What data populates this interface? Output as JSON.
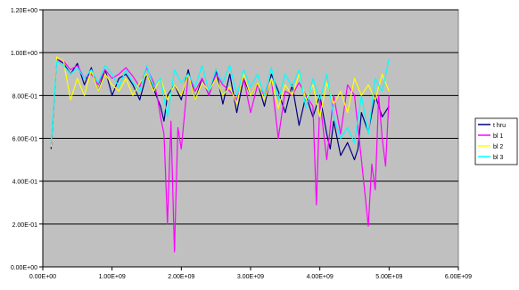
{
  "chart_data": {
    "type": "line",
    "title": "",
    "xlabel": "",
    "ylabel": "",
    "xlim": [
      0,
      6000000000
    ],
    "ylim": [
      0,
      1.2
    ],
    "xticks": [
      0,
      1000000000,
      2000000000,
      3000000000,
      4000000000,
      5000000000,
      6000000000
    ],
    "xtick_labels": [
      "0.00E+00",
      "1.00E+09",
      "2.00E+09",
      "3.00E+09",
      "4.00E+09",
      "5.00E+09",
      "6.00E+09"
    ],
    "yticks": [
      0,
      0.2,
      0.4,
      0.6,
      0.8,
      1.0,
      1.2
    ],
    "ytick_labels": [
      "0.00E+00",
      "2.00E-01",
      "4.00E-01",
      "6.00E-01",
      "8.00E-01",
      "1.00E+00",
      "1.20E+00"
    ],
    "grid": "horizontal",
    "legend_position": "right",
    "plot_background": "#c0c0c0",
    "series": [
      {
        "name": "t hru",
        "color": "#000080",
        "x": [
          120000000,
          200000000,
          300000000,
          400000000,
          500000000,
          600000000,
          700000000,
          800000000,
          900000000,
          1000000000,
          1100000000,
          1200000000,
          1300000000,
          1400000000,
          1500000000,
          1600000000,
          1700000000,
          1750000000,
          1800000000,
          1900000000,
          2000000000,
          2100000000,
          2200000000,
          2300000000,
          2400000000,
          2500000000,
          2600000000,
          2700000000,
          2800000000,
          2900000000,
          3000000000,
          3100000000,
          3200000000,
          3300000000,
          3400000000,
          3500000000,
          3600000000,
          3700000000,
          3800000000,
          3900000000,
          4000000000,
          4100000000,
          4150000000,
          4200000000,
          4300000000,
          4400000000,
          4500000000,
          4550000000,
          4600000000,
          4700000000,
          4800000000,
          4900000000,
          5000000000
        ],
        "y": [
          0.55,
          0.97,
          0.95,
          0.9,
          0.95,
          0.85,
          0.93,
          0.82,
          0.92,
          0.8,
          0.88,
          0.9,
          0.85,
          0.78,
          0.9,
          0.83,
          0.75,
          0.68,
          0.8,
          0.85,
          0.78,
          0.92,
          0.78,
          0.88,
          0.8,
          0.92,
          0.76,
          0.9,
          0.72,
          0.88,
          0.8,
          0.86,
          0.75,
          0.9,
          0.82,
          0.72,
          0.85,
          0.66,
          0.8,
          0.7,
          0.8,
          0.62,
          0.55,
          0.68,
          0.52,
          0.58,
          0.5,
          0.55,
          0.72,
          0.63,
          0.8,
          0.7,
          0.75
        ]
      },
      {
        "name": "bl 1",
        "color": "#ff00ff",
        "x": [
          120000000,
          200000000,
          300000000,
          400000000,
          500000000,
          600000000,
          700000000,
          800000000,
          900000000,
          1000000000,
          1100000000,
          1200000000,
          1300000000,
          1400000000,
          1500000000,
          1600000000,
          1650000000,
          1700000000,
          1750000000,
          1800000000,
          1850000000,
          1900000000,
          1950000000,
          2000000000,
          2100000000,
          2200000000,
          2300000000,
          2400000000,
          2500000000,
          2600000000,
          2700000000,
          2800000000,
          2900000000,
          3000000000,
          3100000000,
          3200000000,
          3300000000,
          3400000000,
          3500000000,
          3600000000,
          3700000000,
          3800000000,
          3900000000,
          3950000000,
          4000000000,
          4100000000,
          4200000000,
          4300000000,
          4400000000,
          4500000000,
          4600000000,
          4700000000,
          4750000000,
          4800000000,
          4850000000,
          4900000000,
          4950000000,
          5000000000
        ],
        "y": [
          0.56,
          0.97,
          0.96,
          0.92,
          0.94,
          0.88,
          0.9,
          0.85,
          0.92,
          0.88,
          0.9,
          0.93,
          0.89,
          0.84,
          0.93,
          0.86,
          0.8,
          0.7,
          0.62,
          0.2,
          0.68,
          0.07,
          0.65,
          0.55,
          0.9,
          0.82,
          0.88,
          0.8,
          0.9,
          0.85,
          0.82,
          0.78,
          0.88,
          0.72,
          0.85,
          0.8,
          0.88,
          0.6,
          0.82,
          0.8,
          0.86,
          0.8,
          0.75,
          0.29,
          0.78,
          0.5,
          0.8,
          0.62,
          0.85,
          0.8,
          0.5,
          0.19,
          0.48,
          0.36,
          0.8,
          0.6,
          0.47,
          0.8
        ]
      },
      {
        "name": "bl 2",
        "color": "#ffff00",
        "x": [
          120000000,
          200000000,
          300000000,
          400000000,
          500000000,
          600000000,
          700000000,
          800000000,
          900000000,
          1000000000,
          1100000000,
          1200000000,
          1300000000,
          1400000000,
          1500000000,
          1600000000,
          1700000000,
          1800000000,
          1900000000,
          2000000000,
          2100000000,
          2200000000,
          2300000000,
          2400000000,
          2500000000,
          2600000000,
          2700000000,
          2800000000,
          2900000000,
          3000000000,
          3100000000,
          3200000000,
          3300000000,
          3400000000,
          3500000000,
          3600000000,
          3700000000,
          3800000000,
          3900000000,
          4000000000,
          4100000000,
          4200000000,
          4300000000,
          4400000000,
          4500000000,
          4600000000,
          4700000000,
          4800000000,
          4900000000,
          5000000000
        ],
        "y": [
          0.56,
          0.98,
          0.96,
          0.78,
          0.88,
          0.8,
          0.92,
          0.82,
          0.9,
          0.85,
          0.82,
          0.88,
          0.8,
          0.86,
          0.9,
          0.82,
          0.88,
          0.78,
          0.85,
          0.8,
          0.9,
          0.78,
          0.86,
          0.82,
          0.88,
          0.8,
          0.84,
          0.76,
          0.9,
          0.8,
          0.86,
          0.78,
          0.88,
          0.74,
          0.85,
          0.8,
          0.9,
          0.78,
          0.85,
          0.7,
          0.86,
          0.76,
          0.82,
          0.72,
          0.88,
          0.8,
          0.85,
          0.78,
          0.9,
          0.82
        ]
      },
      {
        "name": "bl 3",
        "color": "#00ffff",
        "x": [
          120000000,
          200000000,
          300000000,
          400000000,
          500000000,
          600000000,
          700000000,
          800000000,
          900000000,
          1000000000,
          1100000000,
          1200000000,
          1300000000,
          1400000000,
          1500000000,
          1600000000,
          1700000000,
          1800000000,
          1900000000,
          2000000000,
          2100000000,
          2200000000,
          2300000000,
          2400000000,
          2500000000,
          2600000000,
          2700000000,
          2800000000,
          2900000000,
          3000000000,
          3100000000,
          3200000000,
          3300000000,
          3400000000,
          3500000000,
          3600000000,
          3700000000,
          3800000000,
          3900000000,
          4000000000,
          4100000000,
          4200000000,
          4300000000,
          4400000000,
          4500000000,
          4600000000,
          4700000000,
          4800000000,
          4900000000,
          5000000000
        ],
        "y": [
          0.57,
          0.96,
          0.94,
          0.9,
          0.93,
          0.88,
          0.92,
          0.86,
          0.94,
          0.9,
          0.84,
          0.92,
          0.86,
          0.82,
          0.94,
          0.84,
          0.88,
          0.7,
          0.92,
          0.86,
          0.9,
          0.84,
          0.94,
          0.82,
          0.92,
          0.86,
          0.94,
          0.8,
          0.92,
          0.84,
          0.9,
          0.8,
          0.93,
          0.78,
          0.9,
          0.84,
          0.92,
          0.74,
          0.88,
          0.78,
          0.9,
          0.7,
          0.6,
          0.65,
          0.58,
          0.8,
          0.62,
          0.88,
          0.82,
          0.97
        ]
      }
    ]
  }
}
